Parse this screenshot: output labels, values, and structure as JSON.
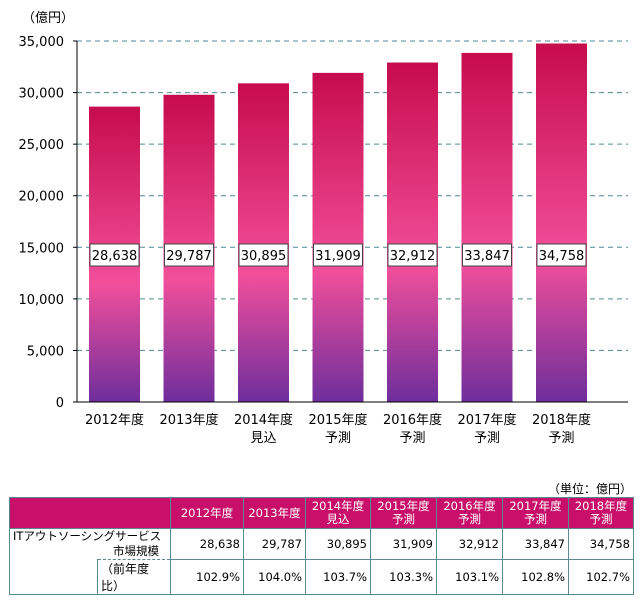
{
  "chart_data": {
    "type": "bar",
    "ylabel": "（億円）",
    "ylim": [
      0,
      35000
    ],
    "yticks": [
      "0",
      "5,000",
      "10,000",
      "15,000",
      "20,000",
      "25,000",
      "30,000",
      "35,000"
    ],
    "grid": true,
    "categories": [
      [
        "2012年度"
      ],
      [
        "2013年度"
      ],
      [
        "2014年度",
        "見込"
      ],
      [
        "2015年度",
        "予測"
      ],
      [
        "2016年度",
        "予測"
      ],
      [
        "2017年度",
        "予測"
      ],
      [
        "2018年度",
        "予測"
      ]
    ],
    "values": [
      28638,
      29787,
      30895,
      31909,
      32912,
      33847,
      34758
    ],
    "value_labels": [
      "28,638",
      "29,787",
      "30,895",
      "31,909",
      "32,912",
      "33,847",
      "34,758"
    ],
    "colors": {
      "top": "#c60c4c",
      "mid": "#f24f9b",
      "bottom": "#6e2e9c",
      "grid": "#4f8a94"
    }
  },
  "table": {
    "unit": "（単位：億円）",
    "headers": [
      [
        "2012年度"
      ],
      [
        "2013年度"
      ],
      [
        "2014年度",
        "見込"
      ],
      [
        "2015年度",
        "予測"
      ],
      [
        "2016年度",
        "予測"
      ],
      [
        "2017年度",
        "予測"
      ],
      [
        "2018年度",
        "予測"
      ]
    ],
    "row_label": [
      "ITアウトソーシングサービス",
      "市場規模"
    ],
    "values": [
      "28,638",
      "29,787",
      "30,895",
      "31,909",
      "32,912",
      "33,847",
      "34,758"
    ],
    "sub_label": "（前年度比）",
    "ratios": [
      "102.9%",
      "104.0%",
      "103.7%",
      "103.3%",
      "103.1%",
      "102.8%",
      "102.7%"
    ]
  }
}
